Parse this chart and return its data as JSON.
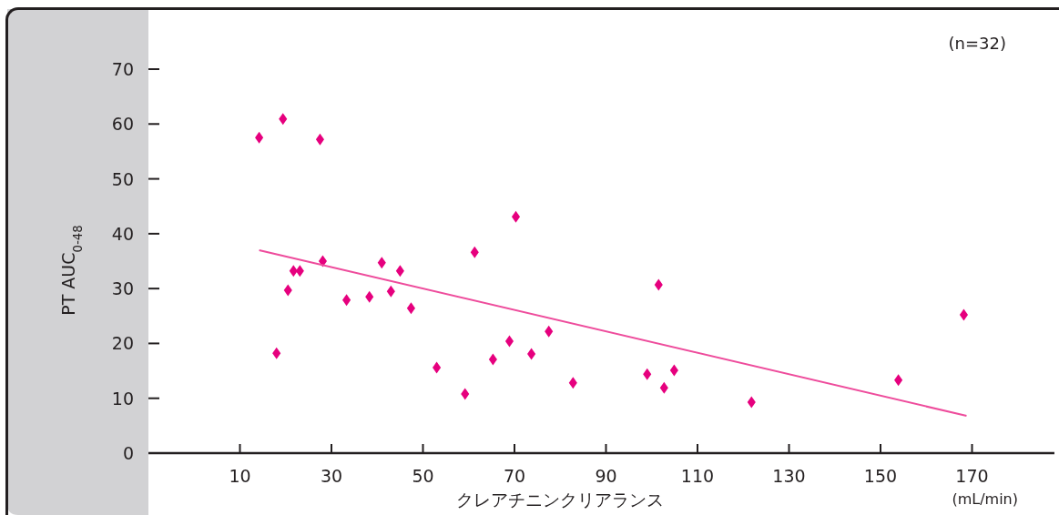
{
  "chart_data": {
    "type": "scatter",
    "xlabel": "クレアチニンクリアランス",
    "ylabel": "PT AUC$_{0-48}$",
    "annotations": [
      "(n=32)",
      "(mL/min)"
    ],
    "xlim": [
      -10,
      188
    ],
    "ylim": [
      0,
      70
    ],
    "xticks": [
      10,
      30,
      50,
      70,
      90,
      110,
      130,
      150,
      170
    ],
    "yticks": [
      0,
      10,
      20,
      30,
      40,
      50,
      60,
      70
    ],
    "series": [
      {
        "type": "scatter",
        "marker": "diamond",
        "color": "#e6007e",
        "x": [
          14.2,
          19.4,
          27.5,
          18.0,
          20.5,
          21.7,
          23.1,
          28.1,
          33.3,
          38.3,
          41.0,
          43.0,
          45.0,
          47.4,
          53.0,
          59.2,
          61.3,
          65.3,
          68.9,
          70.3,
          73.7,
          77.5,
          82.8,
          99.0,
          101.5,
          102.7,
          104.9,
          121.8,
          153.9,
          168.2
        ],
        "values": [
          57.5,
          60.9,
          57.2,
          18.2,
          29.7,
          33.2,
          33.2,
          35.0,
          27.9,
          28.5,
          34.7,
          29.5,
          33.2,
          26.4,
          15.6,
          10.8,
          36.6,
          17.1,
          20.4,
          43.1,
          18.1,
          22.2,
          12.8,
          14.4,
          30.7,
          11.9,
          15.1,
          9.3,
          13.3,
          25.2
        ]
      },
      {
        "type": "line",
        "color": "#ee4c9c",
        "x": [
          14.2,
          168.8
        ],
        "values": [
          37.0,
          6.8
        ]
      }
    ]
  }
}
